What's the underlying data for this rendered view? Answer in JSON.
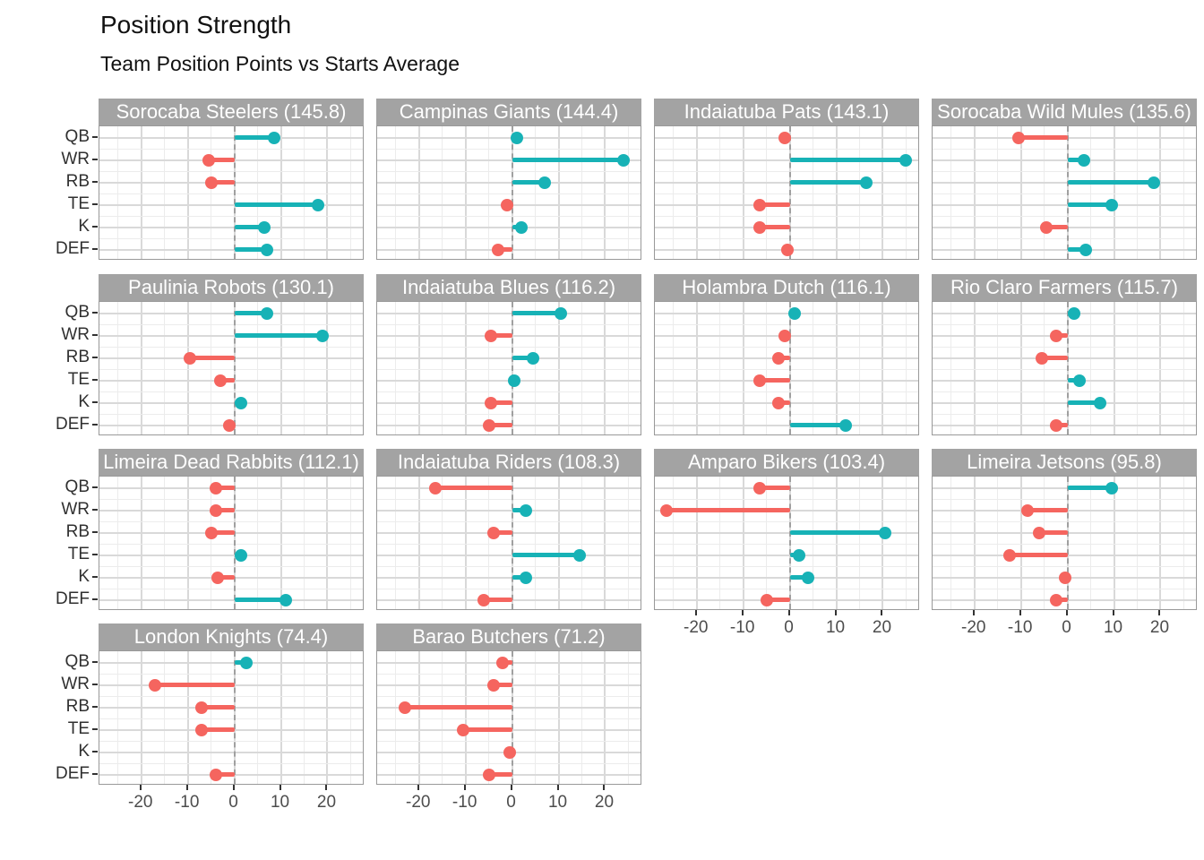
{
  "title": "Position Strength",
  "subtitle": "Team Position Points vs Starts Average",
  "colors": {
    "positive": "#17b2b6",
    "negative": "#f5655f",
    "strip_bg": "#a3a3a3",
    "strip_text": "#ffffff",
    "zero_line": "#a0a0a0",
    "grid_major": "#d9d9d9",
    "grid_minor": "#ececec",
    "panel_border": "#999999"
  },
  "chart_data": {
    "type": "bar",
    "variant": "horizontal-lollipop-small-multiples",
    "title": "Position Strength",
    "subtitle": "Team Position Points vs Starts Average",
    "categories": [
      "QB",
      "WR",
      "RB",
      "TE",
      "K",
      "DEF"
    ],
    "xlabel": "",
    "ylabel": "",
    "xlim": [
      -29,
      28
    ],
    "x_ticks": [
      -20,
      -10,
      0,
      10,
      20
    ],
    "x_tick_labels": [
      "-20",
      "-10",
      "0",
      "10",
      "20"
    ],
    "x_minor_ticks": [
      -25,
      -15,
      -5,
      5,
      15,
      25
    ],
    "grid": true,
    "legend": "none",
    "zero_reference_line": true,
    "value_encoding": "positive values teal, negative values red",
    "facets": [
      {
        "team": "Sorocaba Steelers",
        "total": 145.8,
        "label": "Sorocaba Steelers (145.8)",
        "values": [
          8.5,
          -5.5,
          -5,
          18,
          6.5,
          7
        ]
      },
      {
        "team": "Campinas Giants",
        "total": 144.4,
        "label": "Campinas Giants (144.4)",
        "values": [
          1,
          24,
          7,
          -1,
          2,
          -3
        ]
      },
      {
        "team": "Indaiatuba Pats",
        "total": 143.1,
        "label": "Indaiatuba Pats (143.1)",
        "values": [
          -1,
          25,
          16.5,
          -6.5,
          -6.5,
          -0.5
        ]
      },
      {
        "team": "Sorocaba Wild Mules",
        "total": 135.6,
        "label": "Sorocaba Wild Mules (135.6)",
        "values": [
          -10.5,
          3.5,
          18.5,
          9.5,
          -4.5,
          4
        ]
      },
      {
        "team": "Paulinia Robots",
        "total": 130.1,
        "label": "Paulinia Robots (130.1)",
        "values": [
          7,
          19,
          -9.5,
          -3,
          1.5,
          -1
        ]
      },
      {
        "team": "Indaiatuba Blues",
        "total": 116.2,
        "label": "Indaiatuba Blues (116.2)",
        "values": [
          10.5,
          -4.5,
          4.5,
          0.5,
          -4.5,
          -5
        ]
      },
      {
        "team": "Holambra Dutch",
        "total": 116.1,
        "label": "Holambra Dutch (116.1)",
        "values": [
          1,
          -1,
          -2.5,
          -6.5,
          -2.5,
          12
        ]
      },
      {
        "team": "Rio Claro Farmers",
        "total": 115.7,
        "label": "Rio Claro Farmers (115.7)",
        "values": [
          1.5,
          -2.5,
          -5.5,
          2.5,
          7,
          -2.5
        ]
      },
      {
        "team": "Limeira Dead Rabbits",
        "total": 112.1,
        "label": "Limeira Dead Rabbits (112.1)",
        "values": [
          -4,
          -4,
          -5,
          1.5,
          -3.5,
          11
        ]
      },
      {
        "team": "Indaiatuba Riders",
        "total": 108.3,
        "label": "Indaiatuba Riders (108.3)",
        "values": [
          -16.5,
          3,
          -4,
          14.5,
          3,
          -6
        ]
      },
      {
        "team": "Amparo Bikers",
        "total": 103.4,
        "label": "Amparo Bikers (103.4)",
        "values": [
          -6.5,
          -26.5,
          20.5,
          2,
          4,
          -5
        ]
      },
      {
        "team": "Limeira Jetsons",
        "total": 95.8,
        "label": "Limeira Jetsons (95.8)",
        "values": [
          9.5,
          -8.5,
          -6,
          -12.5,
          -0.5,
          -2.5
        ]
      },
      {
        "team": "London Knights",
        "total": 74.4,
        "label": "London Knights (74.4)",
        "values": [
          2.5,
          -17,
          -7,
          -7,
          null,
          -4
        ]
      },
      {
        "team": "Barao Butchers",
        "total": 71.2,
        "label": "Barao Butchers (71.2)",
        "values": [
          -2,
          -4,
          -23,
          -10.5,
          -0.5,
          -5
        ]
      }
    ]
  }
}
